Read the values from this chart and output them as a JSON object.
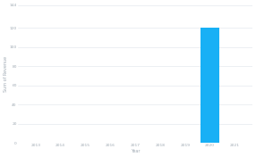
{
  "years": [
    2013,
    2014,
    2015,
    2016,
    2017,
    2018,
    2019,
    2020,
    2021
  ],
  "values": [
    0,
    0,
    0,
    0,
    0,
    0,
    0,
    120,
    0
  ],
  "bar_color": "#18b0f5",
  "background_color": "#ffffff",
  "grid_color": "#dde3ea",
  "tick_color": "#a0aab4",
  "ylabel": "Sum of Revenue",
  "xlabel": "Year",
  "ylim": [
    0,
    144
  ],
  "yticks": [
    0,
    20,
    40,
    60,
    80,
    100,
    120,
    144
  ],
  "ytick_labels": [
    "0",
    "20",
    "40",
    "60",
    "80",
    "100",
    "120",
    "144"
  ],
  "bar_width": 0.75,
  "axis_fontsize": 3.5,
  "tick_fontsize": 3.2,
  "ylabel_fontsize": 3.5,
  "figsize": [
    2.86,
    1.76
  ],
  "dpi": 100
}
